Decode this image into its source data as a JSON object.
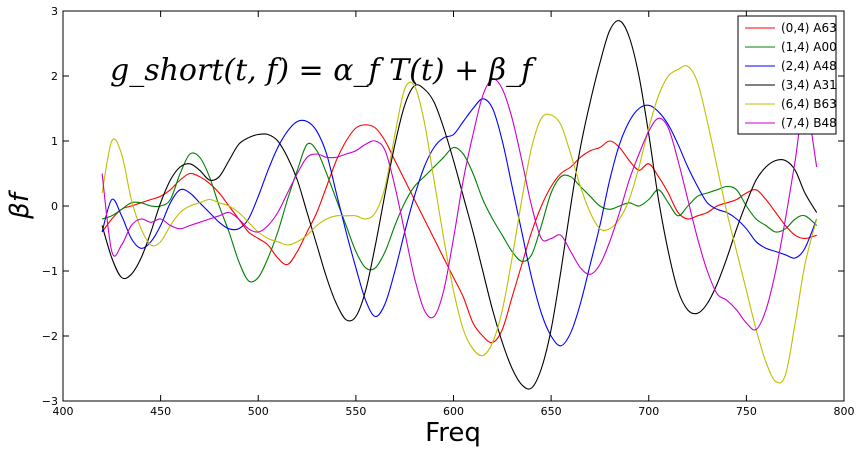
{
  "chart_data": {
    "type": "line",
    "xlabel": "Freq",
    "ylabel": "βf",
    "annotation": "g_short(t, f) = α_f T(t) + β_f",
    "xlim": [
      400,
      800
    ],
    "ylim": [
      -3,
      3
    ],
    "xticks": [
      400,
      450,
      500,
      550,
      600,
      650,
      700,
      750,
      800
    ],
    "yticks": [
      -3,
      -2,
      -1,
      0,
      1,
      2,
      3
    ],
    "ytick_labels": [
      "−3",
      "−2",
      "−1",
      "0",
      "1",
      "2",
      "3"
    ],
    "grid": false,
    "legend_position": "top-right",
    "series": [
      {
        "name": "(0,4) A63",
        "color": "#ff0000",
        "x": [
          420,
          425,
          430,
          435,
          440,
          445,
          450,
          455,
          460,
          465,
          470,
          475,
          480,
          485,
          490,
          495,
          500,
          505,
          510,
          515,
          520,
          525,
          530,
          535,
          540,
          545,
          550,
          555,
          560,
          565,
          570,
          575,
          580,
          585,
          590,
          595,
          600,
          605,
          610,
          615,
          620,
          625,
          630,
          635,
          640,
          645,
          650,
          655,
          660,
          665,
          670,
          675,
          680,
          685,
          690,
          695,
          700,
          705,
          710,
          715,
          720,
          725,
          730,
          735,
          740,
          745,
          750,
          755,
          760,
          765,
          770,
          775,
          780,
          786
        ],
        "y": [
          -0.4,
          -0.2,
          -0.05,
          0.0,
          0.05,
          0.1,
          0.15,
          0.25,
          0.4,
          0.5,
          0.45,
          0.35,
          0.2,
          0.0,
          -0.2,
          -0.4,
          -0.5,
          -0.6,
          -0.8,
          -0.9,
          -0.7,
          -0.4,
          -0.1,
          0.3,
          0.7,
          1.0,
          1.2,
          1.25,
          1.2,
          1.0,
          0.7,
          0.4,
          0.1,
          -0.2,
          -0.5,
          -0.8,
          -1.1,
          -1.4,
          -1.8,
          -2.0,
          -2.1,
          -1.9,
          -1.4,
          -0.9,
          -0.4,
          0.0,
          0.3,
          0.5,
          0.6,
          0.75,
          0.85,
          0.9,
          1.0,
          0.9,
          0.7,
          0.55,
          0.65,
          0.45,
          0.2,
          -0.1,
          -0.2,
          -0.15,
          -0.1,
          0.0,
          0.05,
          0.1,
          0.2,
          0.25,
          0.1,
          -0.1,
          -0.3,
          -0.45,
          -0.5,
          -0.45
        ]
      },
      {
        "name": "(1,4) A00",
        "color": "#008000",
        "x": [
          420,
          425,
          430,
          435,
          440,
          445,
          450,
          455,
          460,
          465,
          470,
          475,
          480,
          485,
          490,
          495,
          500,
          505,
          510,
          515,
          520,
          525,
          530,
          535,
          540,
          545,
          550,
          555,
          560,
          565,
          570,
          575,
          580,
          585,
          590,
          595,
          600,
          605,
          610,
          615,
          620,
          625,
          630,
          635,
          640,
          645,
          650,
          655,
          660,
          665,
          670,
          675,
          680,
          685,
          690,
          695,
          700,
          705,
          710,
          715,
          720,
          725,
          730,
          735,
          740,
          745,
          750,
          755,
          760,
          765,
          770,
          775,
          780,
          786
        ],
        "y": [
          -0.2,
          -0.15,
          -0.05,
          0.05,
          0.05,
          0.0,
          0.0,
          0.1,
          0.5,
          0.8,
          0.75,
          0.45,
          0.0,
          -0.4,
          -0.85,
          -1.15,
          -1.1,
          -0.8,
          -0.4,
          0.1,
          0.55,
          0.95,
          0.85,
          0.5,
          0.1,
          -0.3,
          -0.7,
          -0.95,
          -0.95,
          -0.7,
          -0.3,
          0.05,
          0.3,
          0.45,
          0.6,
          0.75,
          0.9,
          0.8,
          0.5,
          0.1,
          -0.2,
          -0.45,
          -0.7,
          -0.85,
          -0.75,
          -0.3,
          0.2,
          0.45,
          0.45,
          0.3,
          0.15,
          0.0,
          -0.05,
          0.0,
          0.05,
          0.0,
          0.1,
          0.25,
          0.05,
          -0.15,
          0.0,
          0.15,
          0.2,
          0.25,
          0.3,
          0.25,
          0.0,
          -0.2,
          -0.3,
          -0.4,
          -0.35,
          -0.2,
          -0.15,
          -0.3
        ]
      },
      {
        "name": "(2,4) A48",
        "color": "#0000ff",
        "x": [
          420,
          425,
          430,
          435,
          440,
          445,
          450,
          455,
          460,
          465,
          470,
          475,
          480,
          485,
          490,
          495,
          500,
          505,
          510,
          515,
          520,
          525,
          530,
          535,
          540,
          545,
          550,
          555,
          560,
          565,
          570,
          575,
          580,
          585,
          590,
          595,
          600,
          605,
          610,
          615,
          620,
          625,
          630,
          635,
          640,
          645,
          650,
          655,
          660,
          665,
          670,
          675,
          680,
          685,
          690,
          695,
          700,
          705,
          710,
          715,
          720,
          725,
          730,
          735,
          740,
          745,
          750,
          755,
          760,
          765,
          770,
          775,
          780,
          786
        ],
        "y": [
          -0.4,
          0.1,
          -0.15,
          -0.5,
          -0.65,
          -0.55,
          -0.3,
          0.05,
          0.25,
          0.2,
          0.05,
          -0.1,
          -0.25,
          -0.35,
          -0.35,
          -0.2,
          0.15,
          0.55,
          0.9,
          1.15,
          1.3,
          1.3,
          1.15,
          0.8,
          0.2,
          -0.4,
          -0.95,
          -1.45,
          -1.7,
          -1.5,
          -1.0,
          -0.4,
          0.15,
          0.6,
          0.9,
          1.05,
          1.1,
          1.3,
          1.5,
          1.65,
          1.5,
          1.0,
          0.3,
          -0.4,
          -1.1,
          -1.65,
          -2.0,
          -2.15,
          -1.95,
          -1.5,
          -0.9,
          -0.3,
          0.4,
          0.95,
          1.3,
          1.5,
          1.55,
          1.45,
          1.25,
          0.95,
          0.6,
          0.3,
          0.05,
          -0.05,
          -0.1,
          -0.2,
          -0.35,
          -0.55,
          -0.65,
          -0.7,
          -0.75,
          -0.8,
          -0.65,
          -0.2
        ]
      },
      {
        "name": "(3,4) A31",
        "color": "#000000",
        "x": [
          420,
          425,
          430,
          435,
          440,
          445,
          450,
          455,
          460,
          465,
          470,
          475,
          480,
          485,
          490,
          495,
          500,
          505,
          510,
          515,
          520,
          525,
          530,
          535,
          540,
          545,
          550,
          555,
          560,
          565,
          570,
          575,
          580,
          585,
          590,
          595,
          600,
          605,
          610,
          615,
          620,
          625,
          630,
          635,
          640,
          645,
          650,
          655,
          660,
          665,
          670,
          675,
          680,
          685,
          690,
          695,
          700,
          705,
          710,
          715,
          720,
          725,
          730,
          735,
          740,
          745,
          750,
          755,
          760,
          765,
          770,
          775,
          780,
          786
        ],
        "y": [
          -0.3,
          -0.8,
          -1.1,
          -1.05,
          -0.8,
          -0.4,
          0.05,
          0.4,
          0.6,
          0.65,
          0.55,
          0.4,
          0.45,
          0.7,
          0.95,
          1.05,
          1.1,
          1.1,
          1.0,
          0.75,
          0.4,
          -0.1,
          -0.6,
          -1.1,
          -1.5,
          -1.75,
          -1.7,
          -1.3,
          -0.6,
          0.2,
          0.95,
          1.55,
          1.85,
          1.8,
          1.6,
          1.2,
          0.7,
          0.15,
          -0.4,
          -1.0,
          -1.6,
          -2.1,
          -2.5,
          -2.75,
          -2.8,
          -2.5,
          -1.9,
          -1.0,
          0.0,
          0.9,
          1.6,
          2.2,
          2.7,
          2.85,
          2.6,
          2.0,
          1.1,
          0.1,
          -0.7,
          -1.3,
          -1.6,
          -1.65,
          -1.5,
          -1.2,
          -0.8,
          -0.35,
          0.05,
          0.4,
          0.6,
          0.7,
          0.7,
          0.55,
          0.2,
          -0.1
        ]
      },
      {
        "name": "(6,4) B63",
        "color": "#bfbf00",
        "x": [
          420,
          425,
          430,
          435,
          440,
          445,
          450,
          455,
          460,
          465,
          470,
          475,
          480,
          485,
          490,
          495,
          500,
          505,
          510,
          515,
          520,
          525,
          530,
          535,
          540,
          545,
          550,
          555,
          560,
          565,
          570,
          575,
          580,
          585,
          590,
          595,
          600,
          605,
          610,
          615,
          620,
          625,
          630,
          635,
          640,
          645,
          650,
          655,
          660,
          665,
          670,
          675,
          680,
          685,
          690,
          695,
          700,
          705,
          710,
          715,
          720,
          725,
          730,
          735,
          740,
          745,
          750,
          755,
          760,
          765,
          770,
          775,
          780,
          786
        ],
        "y": [
          0.2,
          1.0,
          0.8,
          0.1,
          -0.35,
          -0.6,
          -0.55,
          -0.3,
          -0.1,
          0.0,
          0.05,
          0.1,
          0.05,
          0.0,
          -0.1,
          -0.25,
          -0.4,
          -0.5,
          -0.55,
          -0.6,
          -0.55,
          -0.45,
          -0.3,
          -0.2,
          -0.15,
          -0.15,
          -0.15,
          -0.2,
          -0.1,
          0.3,
          1.1,
          1.8,
          1.85,
          1.3,
          0.4,
          -0.5,
          -1.3,
          -1.9,
          -2.2,
          -2.3,
          -2.1,
          -1.6,
          -0.8,
          0.1,
          0.9,
          1.35,
          1.4,
          1.25,
          0.8,
          0.3,
          -0.1,
          -0.35,
          -0.35,
          -0.2,
          0.1,
          0.6,
          1.2,
          1.7,
          2.0,
          2.1,
          2.15,
          1.9,
          1.3,
          0.6,
          -0.1,
          -0.7,
          -1.3,
          -1.9,
          -2.4,
          -2.7,
          -2.6,
          -1.8,
          -0.9,
          -0.2
        ]
      },
      {
        "name": "(7,4) B48",
        "color": "#cc00cc",
        "x": [
          420,
          425,
          430,
          435,
          440,
          445,
          450,
          455,
          460,
          465,
          470,
          475,
          480,
          485,
          490,
          495,
          500,
          505,
          510,
          515,
          520,
          525,
          530,
          535,
          540,
          545,
          550,
          555,
          560,
          565,
          570,
          575,
          580,
          585,
          590,
          595,
          600,
          605,
          610,
          615,
          620,
          625,
          630,
          635,
          640,
          645,
          650,
          655,
          660,
          665,
          670,
          675,
          680,
          685,
          690,
          695,
          700,
          705,
          710,
          715,
          720,
          725,
          730,
          735,
          740,
          745,
          750,
          755,
          760,
          765,
          770,
          775,
          780,
          786
        ],
        "y": [
          0.5,
          -0.7,
          -0.6,
          -0.3,
          -0.2,
          -0.25,
          -0.2,
          -0.3,
          -0.35,
          -0.3,
          -0.25,
          -0.2,
          -0.15,
          -0.1,
          -0.2,
          -0.35,
          -0.4,
          -0.3,
          -0.1,
          0.2,
          0.5,
          0.75,
          0.8,
          0.75,
          0.75,
          0.8,
          0.85,
          0.95,
          1.0,
          0.85,
          0.3,
          -0.4,
          -1.1,
          -1.6,
          -1.7,
          -1.3,
          -0.5,
          0.4,
          1.1,
          1.7,
          1.95,
          1.8,
          1.35,
          0.7,
          0.0,
          -0.5,
          -0.5,
          -0.45,
          -0.7,
          -0.95,
          -1.05,
          -0.9,
          -0.55,
          -0.1,
          0.4,
          0.8,
          1.15,
          1.35,
          1.2,
          0.7,
          0.1,
          -0.5,
          -1.0,
          -1.35,
          -1.45,
          -1.6,
          -1.8,
          -1.9,
          -1.6,
          -1.0,
          -0.2,
          0.7,
          1.6,
          0.6
        ]
      }
    ]
  }
}
